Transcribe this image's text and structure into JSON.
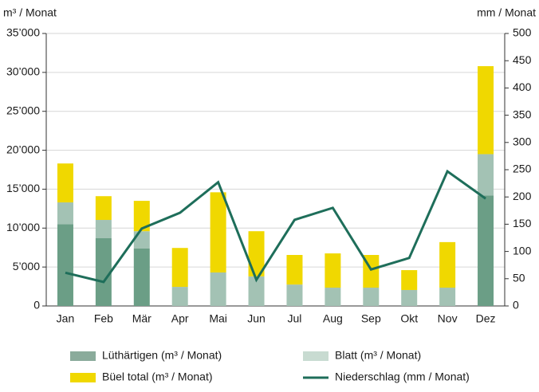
{
  "chart_data": {
    "type": "bar",
    "y_label": "m³ / Monat",
    "y2_label": "mm / Monat",
    "categories": [
      "Jan",
      "Feb",
      "Mär",
      "Apr",
      "Mai",
      "Jun",
      "Jul",
      "Aug",
      "Sep",
      "Okt",
      "Nov",
      "Dez"
    ],
    "series": [
      {
        "name": "Lüthärtigen (m³ / Monat)",
        "color": "#6b9e86",
        "legend_color": "#8aab9b",
        "values": [
          10500,
          8700,
          7400,
          0,
          0,
          0,
          0,
          0,
          0,
          0,
          0,
          14200
        ]
      },
      {
        "name": "Blatt (m³ / Monat)",
        "color": "#a3c2b4",
        "legend_color": "#c8dbd1",
        "values": [
          2800,
          2350,
          2200,
          2450,
          4300,
          3800,
          2750,
          2350,
          2350,
          2050,
          2350,
          5300
        ]
      },
      {
        "name": "Büel total (m³ / Monat)",
        "color": "#f0d800",
        "legend_color": "#f0d800",
        "values": [
          5000,
          3050,
          3900,
          5000,
          10300,
          5800,
          3800,
          4400,
          4200,
          2550,
          5850,
          11300
        ]
      },
      {
        "name": "Niederschlag (mm / Monat)",
        "color": "#1e6e5a",
        "legend_color": "#1e6e5a",
        "type": "line",
        "axis": "y2",
        "values": [
          61,
          44,
          142,
          171,
          227,
          48,
          158,
          180,
          67,
          88,
          247,
          197
        ]
      }
    ],
    "ylim": [
      0,
      35000
    ],
    "yticks": [
      0,
      {
        "value": 5000,
        "label": "5’000"
      },
      {
        "value": 10000,
        "label": "10’000"
      },
      {
        "value": 15000,
        "label": "15’000"
      },
      {
        "value": 20000,
        "label": "20’000"
      },
      {
        "value": 25000,
        "label": "25’000"
      },
      {
        "value": 30000,
        "label": "30’000"
      },
      {
        "value": 35000,
        "label": "35’000"
      }
    ],
    "y2lim": [
      0,
      500
    ],
    "y2ticks": [
      0,
      50,
      100,
      150,
      200,
      250,
      300,
      350,
      400,
      450,
      500
    ],
    "grid": true
  }
}
